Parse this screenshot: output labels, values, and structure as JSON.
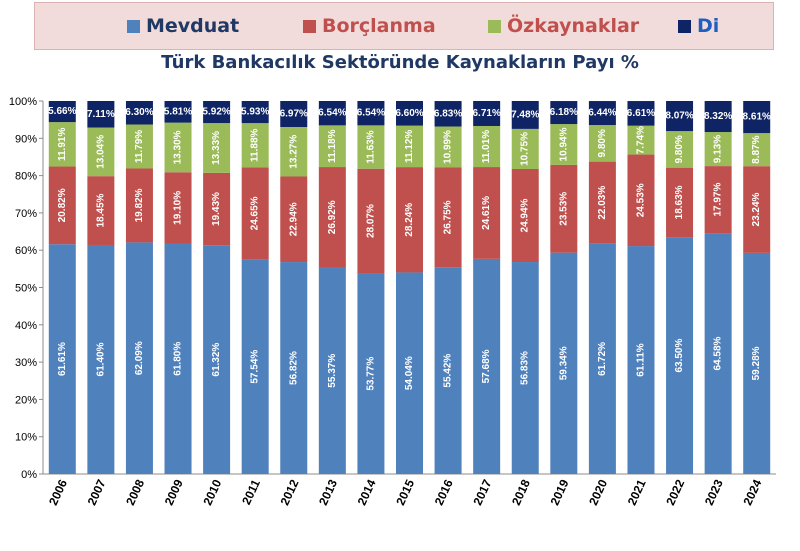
{
  "chart_data": {
    "type": "bar",
    "stacked": true,
    "title": "Türk Bankacılık Sektöründe Kaynakların Payı %",
    "categories": [
      "2006",
      "2007",
      "2008",
      "2009",
      "2010",
      "2011",
      "2012",
      "2013",
      "2014",
      "2015",
      "2016",
      "2017",
      "2018",
      "2019",
      "2020",
      "2021",
      "2022",
      "2023",
      "2024"
    ],
    "series": [
      {
        "name": "Mevduat",
        "color": "#4f81bd",
        "label_color": "#ffffff",
        "values": [
          61.61,
          61.4,
          62.09,
          61.8,
          61.32,
          57.54,
          56.82,
          55.37,
          53.77,
          54.04,
          55.42,
          57.68,
          56.83,
          59.34,
          61.72,
          61.11,
          63.5,
          64.58,
          59.28
        ],
        "labels": [
          "61.61%",
          "61.40%",
          "62.09%",
          "61.80%",
          "61.32%",
          "57.54%",
          "56.82%",
          "55.37%",
          "53.77%",
          "54.04%",
          "55.42%",
          "57.68%",
          "56.83%",
          "59.34%",
          "61.72%",
          "61.11%",
          "63.50%",
          "64.58%",
          "59.28%"
        ]
      },
      {
        "name": "Borçlanma",
        "color": "#c0504d",
        "label_color": "#ffffff",
        "values": [
          20.82,
          18.45,
          19.82,
          19.1,
          19.43,
          24.65,
          22.94,
          26.92,
          28.07,
          28.24,
          26.75,
          24.61,
          24.94,
          23.53,
          22.03,
          24.53,
          18.63,
          17.97,
          23.24
        ],
        "labels": [
          "20.82%",
          "18.45%",
          "19.82%",
          "19.10%",
          "19.43%",
          "24.65%",
          "22.94%",
          "26.92%",
          "28.07%",
          "28.24%",
          "26.75%",
          "24.61%",
          "24.94%",
          "23.53%",
          "22.03%",
          "24.53%",
          "18.63%",
          "17.97%",
          "23.24%"
        ]
      },
      {
        "name": "Özkaynaklar",
        "color": "#9bbb59",
        "label_color": "#ffffff",
        "values": [
          11.91,
          13.04,
          11.79,
          13.3,
          13.33,
          11.88,
          13.27,
          11.18,
          11.63,
          11.12,
          10.99,
          11.01,
          10.75,
          10.94,
          9.8,
          7.74,
          9.8,
          9.13,
          8.87
        ],
        "labels": [
          "11.91%",
          "13.04%",
          "11.79%",
          "13.30%",
          "13.33%",
          "11.88%",
          "13.27%",
          "11.18%",
          "11.63%",
          "11.12%",
          "10.99%",
          "11.01%",
          "10.75%",
          "10.94%",
          "9.80%",
          "7.74%",
          "9.80%",
          "9.13%",
          "8.87%"
        ]
      },
      {
        "name": "Di",
        "color": "#0f2464",
        "label_color": "#ffffff",
        "values": [
          5.66,
          7.11,
          6.3,
          5.81,
          5.92,
          5.93,
          6.97,
          6.54,
          6.54,
          6.6,
          6.83,
          6.71,
          7.48,
          6.18,
          6.44,
          6.61,
          8.07,
          8.32,
          8.61
        ],
        "labels": [
          "5.66%",
          "7.11%",
          "6.30%",
          "5.81%",
          "5.92%",
          "5.93%",
          "6.97%",
          "6.54%",
          "6.54%",
          "6.60%",
          "6.83%",
          "6.71%",
          "7.48%",
          "6.18%",
          "6.44%",
          "6.61%",
          "8.07%",
          "8.32%",
          "8.61%"
        ]
      }
    ],
    "ylim": [
      0,
      100
    ],
    "yticks": [
      "0%",
      "10%",
      "20%",
      "30%",
      "40%",
      "50%",
      "60%",
      "70%",
      "80%",
      "90%",
      "100%"
    ],
    "grid": false,
    "legend": "top"
  },
  "colors": {
    "legend_bg": "#f2dcdb",
    "title": "#1f3864",
    "series_text": [
      "#1f3864",
      "#c0504d",
      "#c0504d",
      "#1f5fbf"
    ]
  }
}
